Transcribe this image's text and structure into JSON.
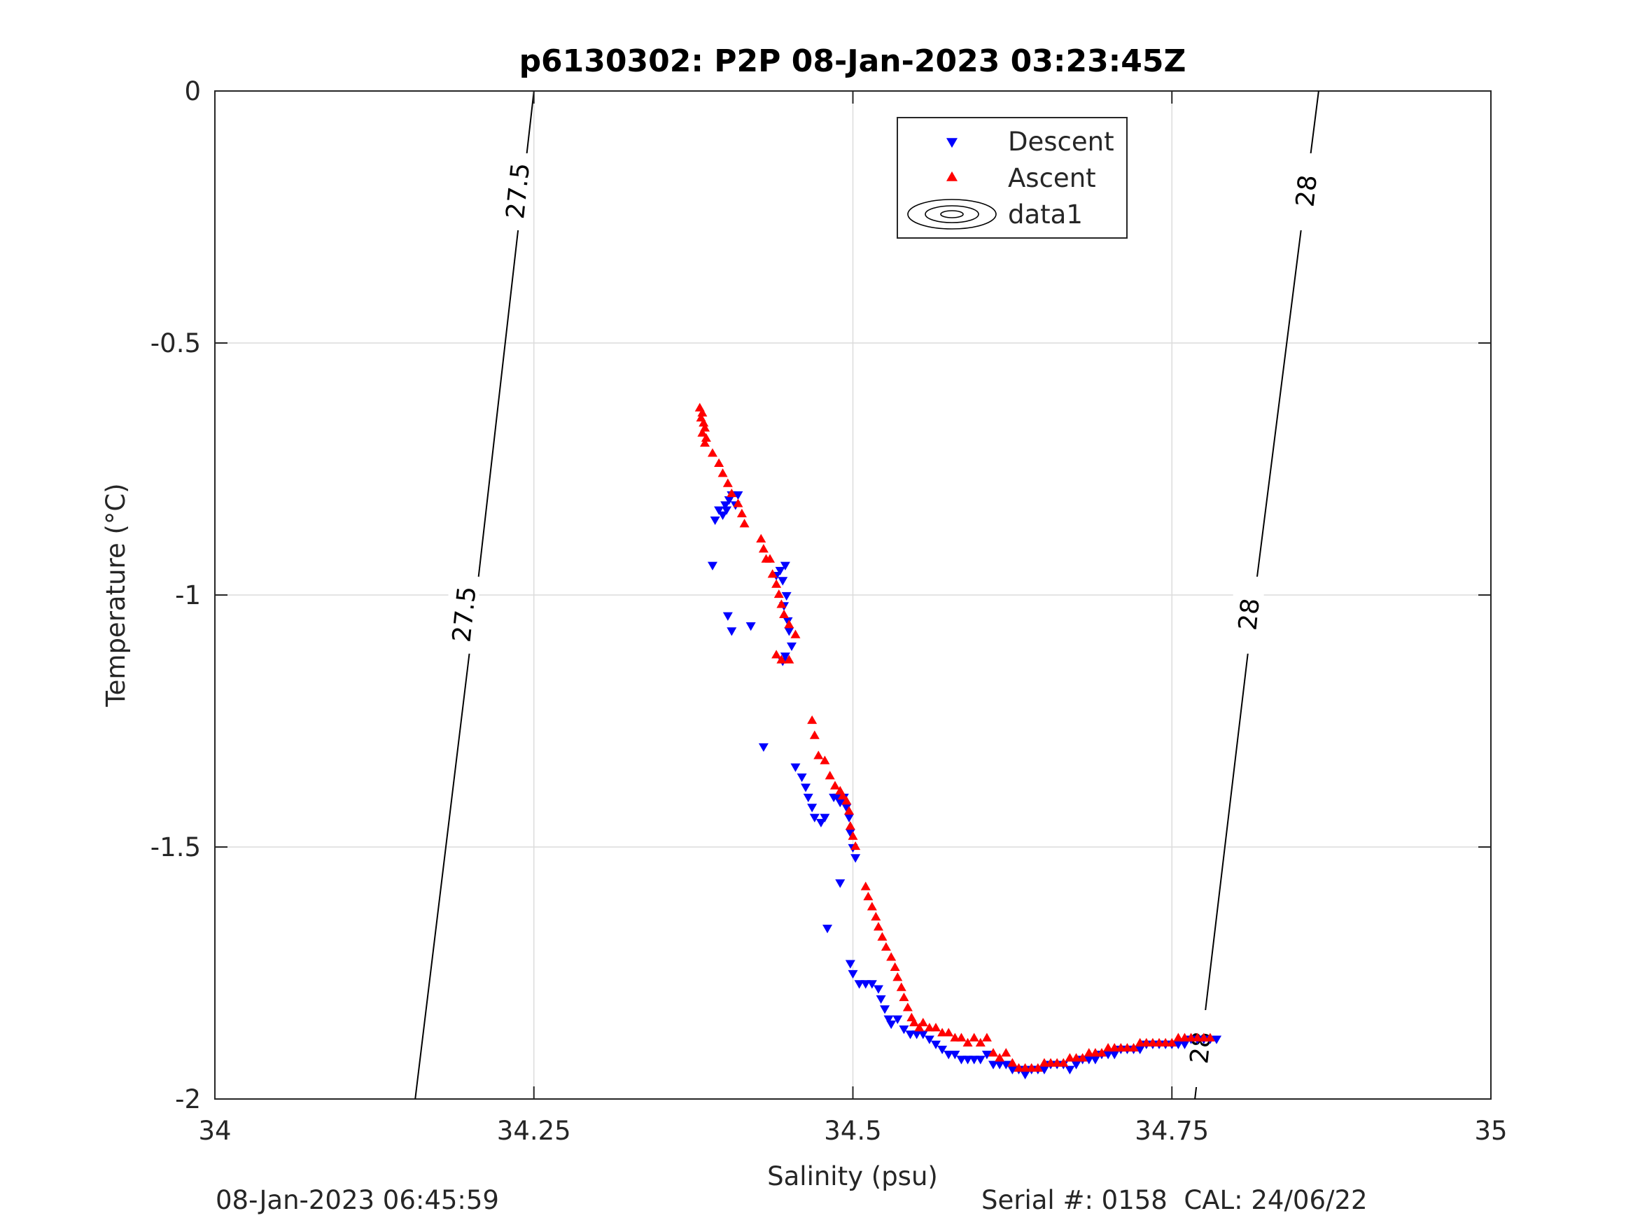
{
  "chart_data": {
    "type": "scatter",
    "title": "p6130302: P2P 08-Jan-2023 03:23:45Z",
    "xlabel": "Salinity (psu)",
    "ylabel": "Temperature (°C)",
    "xlim": [
      34,
      35
    ],
    "ylim": [
      -2,
      0
    ],
    "xticks": [
      "34",
      "34.25",
      "34.5",
      "34.75",
      "35"
    ],
    "xtick_values": [
      34,
      34.25,
      34.5,
      34.75,
      35
    ],
    "yticks": [
      "0",
      "-0.5",
      "-1",
      "-1.5",
      "-2"
    ],
    "ytick_values": [
      0,
      -0.5,
      -1,
      -1.5,
      -2
    ],
    "grid": true,
    "legend_position": "top-center",
    "legend": [
      {
        "name": "Descent",
        "marker": "triangle-down",
        "color": "#0000ff"
      },
      {
        "name": "Ascent",
        "marker": "triangle-up",
        "color": "#ff0000"
      },
      {
        "name": "data1",
        "marker": "contour",
        "color": "#000000"
      }
    ],
    "contours": [
      {
        "label": "27.5",
        "points": [
          [
            34.157,
            -2.0
          ],
          [
            34.205,
            -1.0
          ],
          [
            34.25,
            0.0
          ]
        ],
        "label_positions": [
          [
            34.195,
            -1.04
          ],
          [
            34.237,
            -0.2
          ]
        ]
      },
      {
        "label": "28",
        "points": [
          [
            34.768,
            -2.0
          ],
          [
            34.815,
            -1.0
          ],
          [
            34.865,
            0.0
          ]
        ],
        "label_positions": [
          [
            34.772,
            -1.9
          ],
          [
            34.81,
            -1.04
          ],
          [
            34.855,
            -0.2
          ]
        ]
      }
    ],
    "series": [
      {
        "name": "Descent",
        "color": "#0000ff",
        "marker": "triangle-down",
        "points": [
          [
            34.395,
            -0.83
          ],
          [
            34.398,
            -0.84
          ],
          [
            34.4,
            -0.82
          ],
          [
            34.403,
            -0.81
          ],
          [
            34.405,
            -0.8
          ],
          [
            34.408,
            -0.82
          ],
          [
            34.41,
            -0.8
          ],
          [
            34.392,
            -0.85
          ],
          [
            34.401,
            -0.83
          ],
          [
            34.39,
            -0.94
          ],
          [
            34.402,
            -1.04
          ],
          [
            34.405,
            -1.07
          ],
          [
            34.42,
            -1.06
          ],
          [
            34.44,
            -0.96
          ],
          [
            34.443,
            -0.95
          ],
          [
            34.445,
            -0.97
          ],
          [
            34.447,
            -0.94
          ],
          [
            34.448,
            -1.0
          ],
          [
            34.446,
            -1.02
          ],
          [
            34.449,
            -1.05
          ],
          [
            34.45,
            -1.07
          ],
          [
            34.452,
            -1.1
          ],
          [
            34.447,
            -1.12
          ],
          [
            34.445,
            -1.13
          ],
          [
            34.43,
            -1.3
          ],
          [
            34.455,
            -1.34
          ],
          [
            34.46,
            -1.36
          ],
          [
            34.463,
            -1.38
          ],
          [
            34.465,
            -1.4
          ],
          [
            34.468,
            -1.42
          ],
          [
            34.47,
            -1.44
          ],
          [
            34.475,
            -1.45
          ],
          [
            34.478,
            -1.44
          ],
          [
            34.485,
            -1.4
          ],
          [
            34.488,
            -1.4
          ],
          [
            34.49,
            -1.41
          ],
          [
            34.493,
            -1.4
          ],
          [
            34.495,
            -1.42
          ],
          [
            34.497,
            -1.44
          ],
          [
            34.498,
            -1.47
          ],
          [
            34.5,
            -1.5
          ],
          [
            34.502,
            -1.52
          ],
          [
            34.49,
            -1.57
          ],
          [
            34.48,
            -1.66
          ],
          [
            34.498,
            -1.73
          ],
          [
            34.5,
            -1.75
          ],
          [
            34.505,
            -1.77
          ],
          [
            34.51,
            -1.77
          ],
          [
            34.515,
            -1.77
          ],
          [
            34.52,
            -1.78
          ],
          [
            34.522,
            -1.8
          ],
          [
            34.525,
            -1.82
          ],
          [
            34.528,
            -1.84
          ],
          [
            34.53,
            -1.85
          ],
          [
            34.535,
            -1.84
          ],
          [
            34.54,
            -1.86
          ],
          [
            34.545,
            -1.87
          ],
          [
            34.55,
            -1.87
          ],
          [
            34.555,
            -1.87
          ],
          [
            34.56,
            -1.88
          ],
          [
            34.565,
            -1.89
          ],
          [
            34.57,
            -1.9
          ],
          [
            34.575,
            -1.91
          ],
          [
            34.58,
            -1.91
          ],
          [
            34.585,
            -1.92
          ],
          [
            34.59,
            -1.92
          ],
          [
            34.595,
            -1.92
          ],
          [
            34.6,
            -1.92
          ],
          [
            34.605,
            -1.91
          ],
          [
            34.61,
            -1.93
          ],
          [
            34.615,
            -1.93
          ],
          [
            34.62,
            -1.93
          ],
          [
            34.625,
            -1.94
          ],
          [
            34.63,
            -1.94
          ],
          [
            34.635,
            -1.95
          ],
          [
            34.64,
            -1.94
          ],
          [
            34.645,
            -1.94
          ],
          [
            34.65,
            -1.94
          ],
          [
            34.655,
            -1.93
          ],
          [
            34.66,
            -1.93
          ],
          [
            34.665,
            -1.93
          ],
          [
            34.67,
            -1.94
          ],
          [
            34.675,
            -1.93
          ],
          [
            34.68,
            -1.92
          ],
          [
            34.685,
            -1.92
          ],
          [
            34.69,
            -1.92
          ],
          [
            34.695,
            -1.91
          ],
          [
            34.7,
            -1.91
          ],
          [
            34.705,
            -1.91
          ],
          [
            34.71,
            -1.9
          ],
          [
            34.715,
            -1.9
          ],
          [
            34.72,
            -1.9
          ],
          [
            34.725,
            -1.9
          ],
          [
            34.73,
            -1.89
          ],
          [
            34.735,
            -1.89
          ],
          [
            34.74,
            -1.89
          ],
          [
            34.745,
            -1.89
          ],
          [
            34.75,
            -1.89
          ],
          [
            34.755,
            -1.89
          ],
          [
            34.76,
            -1.89
          ],
          [
            34.765,
            -1.88
          ],
          [
            34.77,
            -1.88
          ],
          [
            34.775,
            -1.88
          ],
          [
            34.78,
            -1.88
          ],
          [
            34.785,
            -1.88
          ]
        ]
      },
      {
        "name": "Ascent",
        "color": "#ff0000",
        "marker": "triangle-up",
        "points": [
          [
            34.38,
            -0.63
          ],
          [
            34.382,
            -0.64
          ],
          [
            34.381,
            -0.65
          ],
          [
            34.383,
            -0.66
          ],
          [
            34.384,
            -0.67
          ],
          [
            34.382,
            -0.68
          ],
          [
            34.385,
            -0.69
          ],
          [
            34.384,
            -0.7
          ],
          [
            34.39,
            -0.72
          ],
          [
            34.395,
            -0.74
          ],
          [
            34.398,
            -0.76
          ],
          [
            34.402,
            -0.78
          ],
          [
            34.405,
            -0.8
          ],
          [
            34.41,
            -0.82
          ],
          [
            34.413,
            -0.84
          ],
          [
            34.415,
            -0.86
          ],
          [
            34.428,
            -0.89
          ],
          [
            34.43,
            -0.91
          ],
          [
            34.432,
            -0.93
          ],
          [
            34.435,
            -0.93
          ],
          [
            34.437,
            -0.96
          ],
          [
            34.44,
            -0.98
          ],
          [
            34.442,
            -1.0
          ],
          [
            34.444,
            -1.02
          ],
          [
            34.446,
            -1.04
          ],
          [
            34.45,
            -1.06
          ],
          [
            34.455,
            -1.08
          ],
          [
            34.44,
            -1.12
          ],
          [
            34.444,
            -1.13
          ],
          [
            34.45,
            -1.13
          ],
          [
            34.468,
            -1.25
          ],
          [
            34.47,
            -1.28
          ],
          [
            34.473,
            -1.32
          ],
          [
            34.478,
            -1.33
          ],
          [
            34.482,
            -1.36
          ],
          [
            34.486,
            -1.38
          ],
          [
            34.49,
            -1.39
          ],
          [
            34.492,
            -1.4
          ],
          [
            34.495,
            -1.41
          ],
          [
            34.497,
            -1.43
          ],
          [
            34.498,
            -1.46
          ],
          [
            34.5,
            -1.48
          ],
          [
            34.502,
            -1.5
          ],
          [
            34.51,
            -1.58
          ],
          [
            34.512,
            -1.6
          ],
          [
            34.515,
            -1.62
          ],
          [
            34.518,
            -1.64
          ],
          [
            34.52,
            -1.66
          ],
          [
            34.523,
            -1.68
          ],
          [
            34.526,
            -1.7
          ],
          [
            34.53,
            -1.72
          ],
          [
            34.533,
            -1.74
          ],
          [
            34.535,
            -1.76
          ],
          [
            34.538,
            -1.78
          ],
          [
            34.54,
            -1.8
          ],
          [
            34.543,
            -1.82
          ],
          [
            34.546,
            -1.84
          ],
          [
            34.548,
            -1.85
          ],
          [
            34.552,
            -1.86
          ],
          [
            34.555,
            -1.85
          ],
          [
            34.56,
            -1.86
          ],
          [
            34.565,
            -1.86
          ],
          [
            34.57,
            -1.87
          ],
          [
            34.575,
            -1.87
          ],
          [
            34.58,
            -1.88
          ],
          [
            34.585,
            -1.88
          ],
          [
            34.59,
            -1.89
          ],
          [
            34.595,
            -1.88
          ],
          [
            34.6,
            -1.89
          ],
          [
            34.605,
            -1.88
          ],
          [
            34.61,
            -1.91
          ],
          [
            34.615,
            -1.92
          ],
          [
            34.62,
            -1.91
          ],
          [
            34.625,
            -1.93
          ],
          [
            34.63,
            -1.94
          ],
          [
            34.635,
            -1.94
          ],
          [
            34.64,
            -1.94
          ],
          [
            34.645,
            -1.94
          ],
          [
            34.65,
            -1.93
          ],
          [
            34.655,
            -1.93
          ],
          [
            34.66,
            -1.93
          ],
          [
            34.665,
            -1.93
          ],
          [
            34.67,
            -1.92
          ],
          [
            34.675,
            -1.92
          ],
          [
            34.68,
            -1.92
          ],
          [
            34.685,
            -1.91
          ],
          [
            34.69,
            -1.91
          ],
          [
            34.695,
            -1.91
          ],
          [
            34.7,
            -1.9
          ],
          [
            34.705,
            -1.9
          ],
          [
            34.71,
            -1.9
          ],
          [
            34.715,
            -1.9
          ],
          [
            34.72,
            -1.9
          ],
          [
            34.725,
            -1.89
          ],
          [
            34.73,
            -1.89
          ],
          [
            34.735,
            -1.89
          ],
          [
            34.74,
            -1.89
          ],
          [
            34.745,
            -1.89
          ],
          [
            34.75,
            -1.89
          ],
          [
            34.755,
            -1.88
          ],
          [
            34.76,
            -1.88
          ],
          [
            34.765,
            -1.88
          ],
          [
            34.77,
            -1.88
          ],
          [
            34.775,
            -1.88
          ],
          [
            34.78,
            -1.88
          ]
        ]
      }
    ]
  },
  "footer": {
    "timestamp": "08-Jan-2023 06:45:59",
    "serial": "Serial #: 0158  CAL: 24/06/22"
  }
}
